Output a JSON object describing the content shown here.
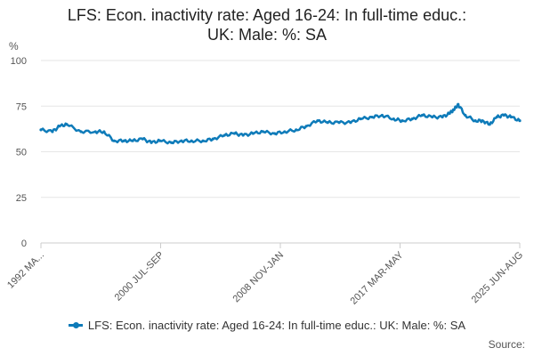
{
  "title_line1": "LFS: Econ. inactivity rate: Aged 16-24: In full-time educ.:",
  "title_line2": "UK: Male: %: SA",
  "source_label": "Source:",
  "colors": {
    "series": "#0e7bb9",
    "grid": "#e6e6e6",
    "axis_text": "#555555"
  },
  "chart_data": {
    "type": "line",
    "title": "LFS: Econ. inactivity rate: Aged 16-24: In full-time educ.: UK: Male: %: SA",
    "ylabel": "%",
    "xlabel": "",
    "ylim": [
      0,
      100
    ],
    "yticks": [
      0,
      25,
      50,
      75,
      100
    ],
    "x_tick_labels": [
      "1992 MA...",
      "2000 JUL-SEP",
      "2008 NOV-JAN",
      "2017 MAR-MAY",
      "2025 JUN-AUG"
    ],
    "x_start": "1992",
    "x_end": "2025 JUN-AUG",
    "legend_position": "bottom",
    "grid": true,
    "series": [
      {
        "name": "LFS: Econ. inactivity rate: Aged 16-24: In full-time educ.: UK: Male: %: SA",
        "x": [
          1992.2,
          1993.0,
          1993.5,
          1994.0,
          1995.0,
          1996.0,
          1996.6,
          1997.3,
          1998.0,
          1998.6,
          1999.3,
          1999.9,
          2000.5,
          2001.3,
          2002.0,
          2002.7,
          2003.5,
          2004.2,
          2005.0,
          2005.7,
          2006.3,
          2007.0,
          2007.7,
          2008.5,
          2009.2,
          2010.0,
          2010.7,
          2011.5,
          2012.2,
          2013.0,
          2013.8,
          2014.5,
          2015.3,
          2016.0,
          2016.8,
          2017.4,
          2018.1,
          2018.8,
          2019.5,
          2020.2,
          2020.7,
          2021.0,
          2021.3,
          2021.8,
          2022.5,
          2023.0,
          2023.5,
          2024.0,
          2024.5,
          2025.0,
          2025.6
        ],
        "values": [
          62,
          61,
          64,
          65,
          61,
          61,
          61,
          56,
          56,
          56,
          57,
          55,
          56,
          55,
          56,
          56,
          56,
          57,
          59,
          60,
          59,
          60,
          61,
          60,
          61,
          62,
          64,
          67,
          66,
          66,
          66,
          68,
          69,
          70,
          68,
          67,
          68,
          70,
          69,
          69,
          71,
          73,
          76,
          70,
          67,
          67,
          65,
          69,
          70,
          69,
          67
        ]
      }
    ]
  }
}
